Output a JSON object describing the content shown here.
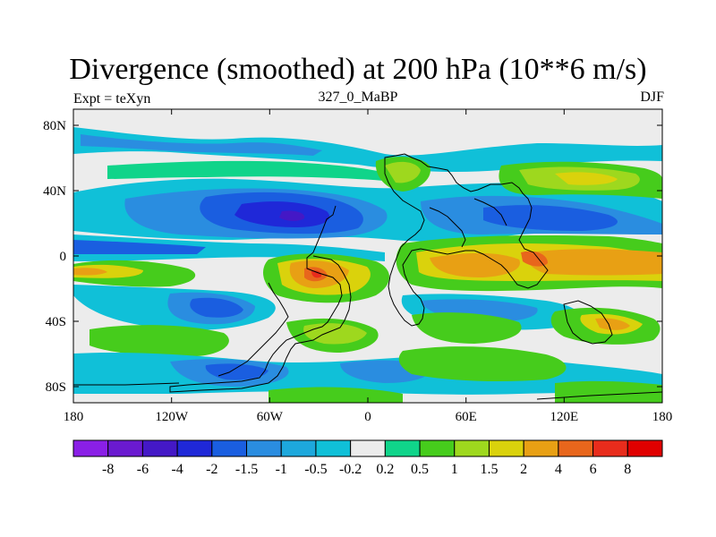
{
  "title": "Divergence (smoothed) at 200 hPa (10**6 m/s)",
  "subtitle_left": "Expt = teXyn",
  "subtitle_center": "327_0_MaBP",
  "subtitle_right": "DJF",
  "lat_labels": [
    "80N",
    "40N",
    "0",
    "40S",
    "80S"
  ],
  "lon_labels": [
    "180",
    "120W",
    "60W",
    "0",
    "60E",
    "120E",
    "180"
  ],
  "colorbar": {
    "labels": [
      "-8",
      "-6",
      "-4",
      "-2",
      "-1.5",
      "-1",
      "-0.5",
      "-0.2",
      "0.2",
      "0.5",
      "1",
      "1.5",
      "2",
      "4",
      "6",
      "8"
    ],
    "colors": [
      "#8a1fe6",
      "#6a1ad0",
      "#4418c6",
      "#1f28d8",
      "#1a5ee0",
      "#2a8de0",
      "#1da8dc",
      "#10c0d8",
      "#ececec",
      "#10d48a",
      "#46cc1c",
      "#9ed81e",
      "#dad20c",
      "#e8a014",
      "#e8661c",
      "#e82c1c",
      "#e00000"
    ]
  },
  "map_colors": {
    "neutral": "#ececec",
    "neg_light": "#10c0d8",
    "neg_mid": "#2a8de0",
    "neg_strong": "#1a5ee0",
    "neg_deep": "#1f28d8",
    "neg_core": "#4418c6",
    "pos_light": "#10d48a",
    "pos_mid": "#46cc1c",
    "pos_yel": "#9ed81e",
    "pos_gold": "#dad20c",
    "pos_orange": "#e8a014",
    "pos_red": "#e8661c",
    "pos_core": "#e82c1c"
  }
}
